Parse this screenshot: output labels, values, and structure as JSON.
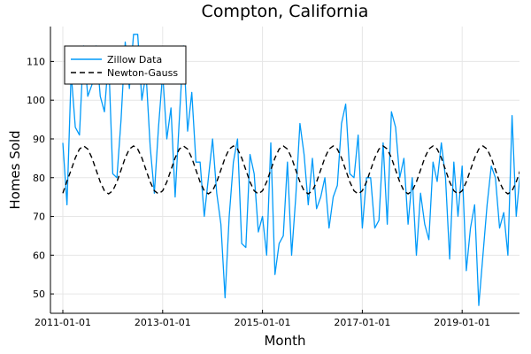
{
  "chart_data": {
    "type": "line",
    "title": "Compton, California",
    "xlabel": "Month",
    "ylabel": "Homes Sold",
    "x_start": "2011-01",
    "x_frequency": "monthly",
    "x_ticks": [
      "2011-01-01",
      "2013-01-01",
      "2015-01-01",
      "2017-01-01",
      "2019-01-01"
    ],
    "y_ticks": [
      50,
      60,
      70,
      80,
      90,
      100,
      110
    ],
    "ylim": [
      45,
      119
    ],
    "grid": true,
    "legend_position": "top-left",
    "series": [
      {
        "name": "Zillow Data",
        "style": "solid",
        "color": "#009af9",
        "values": [
          89,
          73,
          107,
          93,
          91,
          114,
          101,
          104,
          114,
          101,
          97,
          111,
          81,
          80,
          95,
          115,
          103,
          117,
          117,
          100,
          107,
          88,
          76,
          93,
          107,
          90,
          98,
          75,
          95,
          114,
          92,
          102,
          84,
          84,
          70,
          80,
          90,
          76,
          68,
          49,
          70,
          84,
          90,
          63,
          62,
          86,
          81,
          66,
          70,
          60,
          89,
          55,
          63,
          65,
          84,
          60,
          75,
          94,
          86,
          73,
          85,
          72,
          75,
          80,
          67,
          75,
          78,
          94,
          99,
          81,
          80,
          91,
          67,
          80,
          80,
          67,
          69,
          89,
          68,
          97,
          93,
          80,
          85,
          68,
          80,
          60,
          76,
          68,
          64,
          84,
          79,
          89,
          80,
          59,
          84,
          70,
          83,
          56,
          67,
          73,
          47,
          60,
          73,
          83,
          80,
          67,
          71,
          60,
          96,
          70,
          82,
          78
        ]
      },
      {
        "name": "Newton-Gauss",
        "style": "dashed",
        "color": "#000000",
        "mean": 82,
        "amplitude": 6.2,
        "period_months": 12,
        "values": [
          76,
          79.1,
          82,
          85.1,
          87.4,
          88.2,
          87.4,
          85.1,
          82,
          78.9,
          76.6,
          75.8,
          76.6,
          78.9,
          82,
          85.1,
          87.4,
          88.2,
          87.4,
          85.1,
          82,
          78.9,
          76.6,
          75.8,
          76.6,
          78.9,
          82,
          85.1,
          87.4,
          88.2,
          87.4,
          85.1,
          82,
          78.9,
          76.6,
          75.8,
          76.6,
          78.9,
          82,
          85.1,
          87.4,
          88.2,
          87.4,
          85.1,
          82,
          78.9,
          76.6,
          75.8,
          76.6,
          78.9,
          82,
          85.1,
          87.4,
          88.2,
          87.4,
          85.1,
          82,
          78.9,
          76.6,
          75.8,
          76.6,
          78.9,
          82,
          85.1,
          87.4,
          88.2,
          87.4,
          85.1,
          82,
          78.9,
          76.6,
          75.8,
          76.6,
          78.9,
          82,
          85.1,
          87.4,
          88.2,
          87.4,
          85.1,
          82,
          78.9,
          76.6,
          75.8,
          76.6,
          78.9,
          82,
          85.1,
          87.4,
          88.2,
          87.4,
          85.1,
          82,
          78.9,
          76.6,
          75.8,
          76.6,
          78.9,
          82,
          85.1,
          87.4,
          88.2,
          87.4,
          85.1,
          82,
          78.9,
          76.6,
          75.8,
          76.6,
          78.9,
          82,
          85.1
        ]
      }
    ]
  }
}
